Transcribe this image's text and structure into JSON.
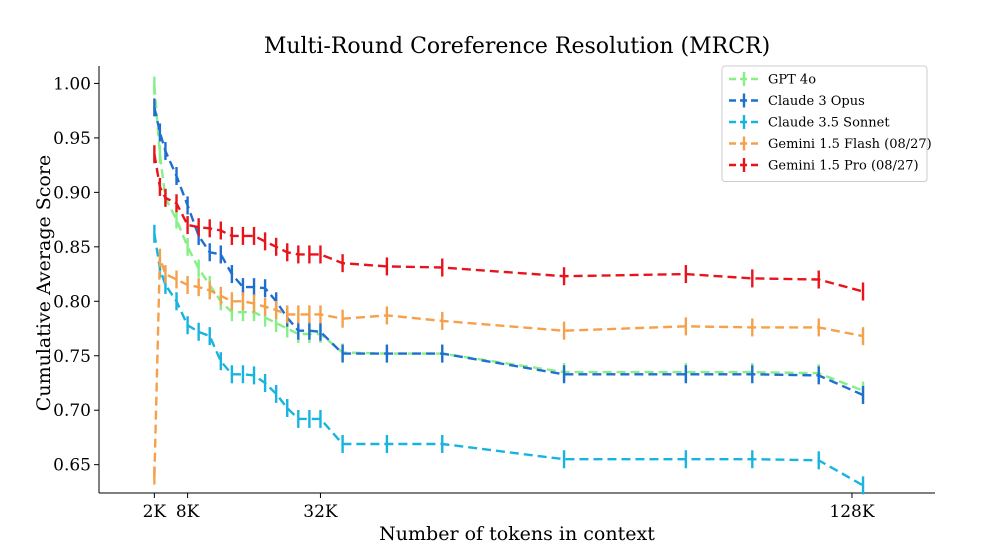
{
  "chart_data": {
    "type": "line",
    "title": "Multi-Round Coreference Resolution (MRCR)",
    "xlabel": "Number of tokens in context",
    "ylabel": "Cumulative Average Score",
    "xlim": [
      -8,
      143
    ],
    "ylim": [
      0.624,
      1.016
    ],
    "x_ticks": [
      {
        "value": 2,
        "label": "2K"
      },
      {
        "value": 8,
        "label": "8K"
      },
      {
        "value": 32,
        "label": "32K"
      },
      {
        "value": 128,
        "label": "128K"
      }
    ],
    "y_ticks": [
      0.65,
      0.7,
      0.75,
      0.8,
      0.85,
      0.9,
      0.95,
      1.0
    ],
    "y_tick_labels": [
      "0.65",
      "0.70",
      "0.75",
      "0.80",
      "0.85",
      "0.90",
      "0.95",
      "1.00"
    ],
    "legend_position": "top-right",
    "series": [
      {
        "name": "GPT 4o",
        "color": "#86ef86",
        "x": [
          2,
          3,
          4,
          6,
          8,
          10,
          12,
          14,
          16,
          18,
          20,
          22,
          24,
          26,
          28,
          30,
          32,
          36,
          44,
          54,
          76,
          98,
          110,
          122,
          130
        ],
        "y": [
          0.998,
          0.935,
          0.895,
          0.875,
          0.85,
          0.83,
          0.815,
          0.8,
          0.79,
          0.79,
          0.79,
          0.785,
          0.78,
          0.775,
          0.77,
          0.77,
          0.77,
          0.753,
          0.752,
          0.752,
          0.735,
          0.735,
          0.735,
          0.734,
          0.718
        ]
      },
      {
        "name": "Claude 3 Opus",
        "color": "#1f6fd1",
        "x": [
          2,
          3,
          4,
          6,
          8,
          10,
          12,
          14,
          16,
          18,
          20,
          22,
          24,
          26,
          28,
          30,
          32,
          36,
          44,
          54,
          76,
          98,
          110,
          122,
          130
        ],
        "y": [
          0.978,
          0.955,
          0.938,
          0.915,
          0.888,
          0.86,
          0.845,
          0.843,
          0.825,
          0.813,
          0.813,
          0.812,
          0.8,
          0.785,
          0.773,
          0.773,
          0.772,
          0.752,
          0.752,
          0.752,
          0.733,
          0.733,
          0.733,
          0.732,
          0.714
        ]
      },
      {
        "name": "Claude 3.5 Sonnet",
        "color": "#18b4e0",
        "x": [
          2,
          3,
          4,
          6,
          8,
          10,
          12,
          14,
          16,
          18,
          20,
          22,
          24,
          26,
          28,
          30,
          32,
          36,
          44,
          54,
          76,
          98,
          110,
          122,
          130
        ],
        "y": [
          0.862,
          0.83,
          0.815,
          0.8,
          0.778,
          0.772,
          0.768,
          0.745,
          0.733,
          0.733,
          0.732,
          0.725,
          0.715,
          0.702,
          0.692,
          0.692,
          0.692,
          0.669,
          0.669,
          0.669,
          0.655,
          0.655,
          0.655,
          0.654,
          0.631
        ]
      },
      {
        "name": "Gemini 1.5 Flash (08/27)",
        "color": "#f5a04b",
        "x": [
          2,
          3,
          4,
          6,
          8,
          10,
          12,
          14,
          16,
          18,
          20,
          22,
          24,
          26,
          28,
          30,
          32,
          36,
          44,
          54,
          76,
          98,
          110,
          122,
          130
        ],
        "y": [
          0.64,
          0.84,
          0.825,
          0.82,
          0.815,
          0.813,
          0.81,
          0.805,
          0.8,
          0.8,
          0.798,
          0.795,
          0.792,
          0.788,
          0.788,
          0.788,
          0.788,
          0.784,
          0.787,
          0.782,
          0.773,
          0.777,
          0.776,
          0.776,
          0.768
        ]
      },
      {
        "name": "Gemini 1.5 Pro (08/27)",
        "color": "#e8141c",
        "x": [
          2,
          3,
          4,
          6,
          8,
          10,
          12,
          14,
          16,
          18,
          20,
          22,
          24,
          26,
          28,
          30,
          32,
          36,
          44,
          54,
          76,
          98,
          110,
          122,
          130
        ],
        "y": [
          0.935,
          0.905,
          0.895,
          0.89,
          0.87,
          0.868,
          0.867,
          0.865,
          0.86,
          0.86,
          0.86,
          0.855,
          0.85,
          0.845,
          0.843,
          0.843,
          0.843,
          0.835,
          0.832,
          0.831,
          0.823,
          0.825,
          0.821,
          0.82,
          0.809
        ]
      }
    ]
  }
}
